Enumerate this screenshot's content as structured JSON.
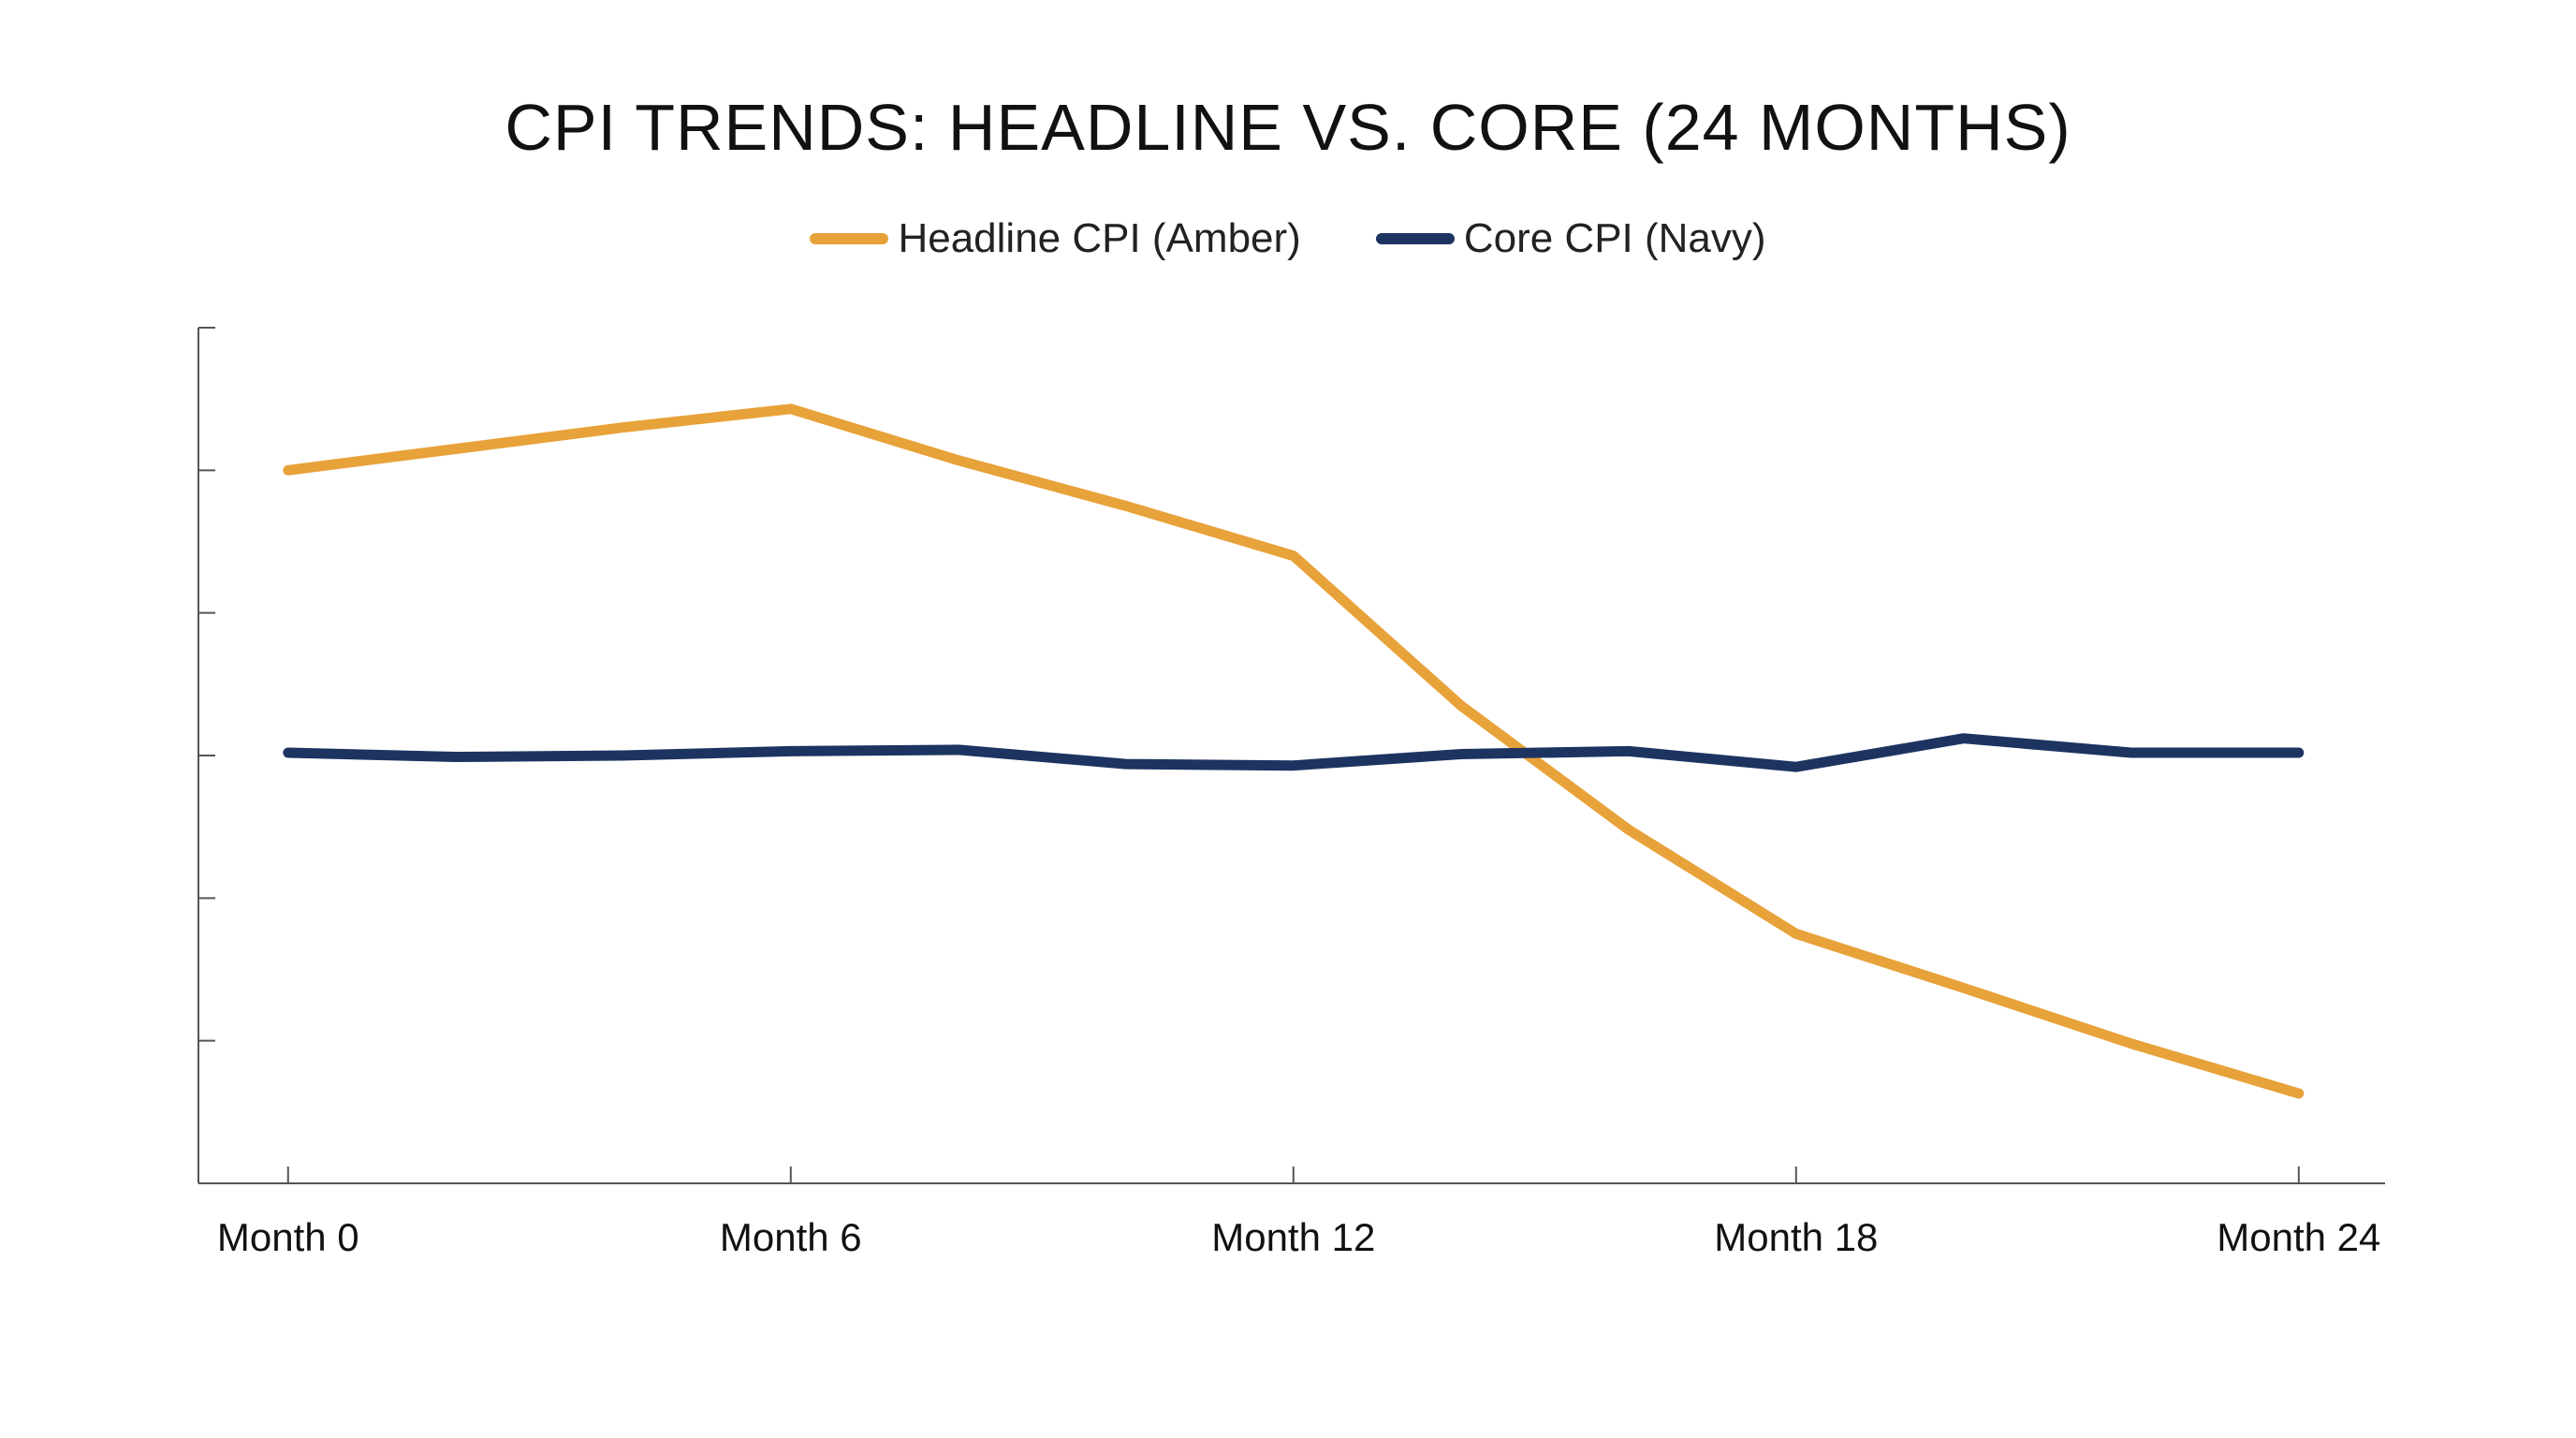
{
  "chart_data": {
    "type": "line",
    "title": "CPI TRENDS: HEADLINE VS. CORE (24 MONTHS)",
    "xlabel": "",
    "ylabel": "",
    "x": [
      0,
      2,
      4,
      6,
      8,
      10,
      12,
      14,
      16,
      18,
      20,
      22,
      24
    ],
    "x_ticks": [
      0,
      6,
      12,
      18,
      24
    ],
    "x_tick_labels": [
      "Month 0",
      "Month 6",
      "Month 12",
      "Month 18",
      "Month 24"
    ],
    "xlim": [
      -1.07,
      25.03
    ],
    "y_tick_count": 6,
    "ylim": [
      0,
      6
    ],
    "y_tick_labels_shown": false,
    "grid": false,
    "legend_position": "top-center",
    "series": [
      {
        "name": "Headline CPI (Amber)",
        "color": "#E8A23A",
        "values": [
          5.0,
          5.15,
          5.3,
          5.43,
          5.07,
          4.75,
          4.4,
          3.35,
          2.48,
          1.75,
          1.37,
          0.98,
          0.63
        ]
      },
      {
        "name": "Core CPI (Navy)",
        "color": "#1D3461",
        "values": [
          3.02,
          2.99,
          3.0,
          3.03,
          3.04,
          2.94,
          2.93,
          3.01,
          3.03,
          2.92,
          3.12,
          3.02,
          3.02
        ]
      }
    ]
  }
}
